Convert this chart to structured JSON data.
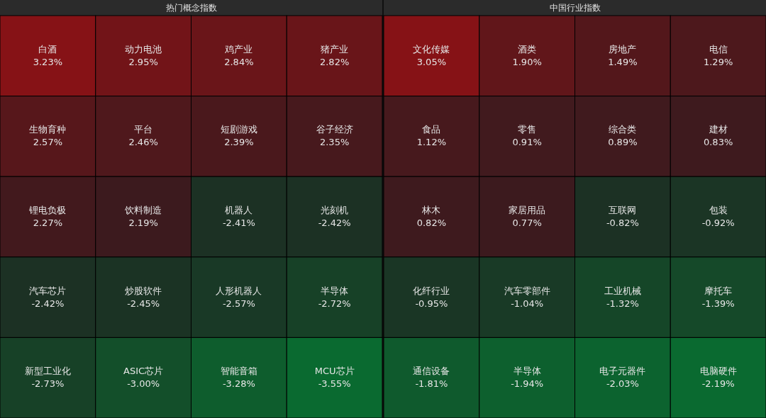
{
  "chart_data": [
    {
      "type": "other",
      "title": "热门概念指数",
      "categories": [
        "白酒",
        "动力电池",
        "鸡产业",
        "猪产业",
        "生物育种",
        "平台",
        "短剧游戏",
        "谷子经济",
        "锂电负极",
        "饮料制造",
        "机器人",
        "光刻机",
        "汽车芯片",
        "炒股软件",
        "人形机器人",
        "半导体",
        "新型工业化",
        "ASIC芯片",
        "智能音箱",
        "MCU芯片"
      ],
      "values": [
        3.23,
        2.95,
        2.84,
        2.82,
        2.57,
        2.46,
        2.39,
        2.35,
        2.27,
        2.19,
        -2.41,
        -2.42,
        -2.42,
        -2.45,
        -2.57,
        -2.72,
        -2.73,
        -3.0,
        -3.28,
        -3.55
      ],
      "value_labels": [
        "3.23%",
        "2.95%",
        "2.84%",
        "2.82%",
        "2.57%",
        "2.46%",
        "2.39%",
        "2.35%",
        "2.27%",
        "2.19%",
        "-2.41%",
        "-2.42%",
        "-2.42%",
        "-2.45%",
        "-2.57%",
        "-2.72%",
        "-2.73%",
        "-3.00%",
        "-3.28%",
        "-3.55%"
      ]
    },
    {
      "type": "other",
      "title": "中国行业指数",
      "categories": [
        "文化传媒",
        "酒类",
        "房地产",
        "电信",
        "食品",
        "零售",
        "综合类",
        "建材",
        "林木",
        "家居用品",
        "互联网",
        "包装",
        "化纤行业",
        "汽车零部件",
        "工业机械",
        "摩托车",
        "通信设备",
        "半导体",
        "电子元器件",
        "电脑硬件"
      ],
      "values": [
        3.05,
        1.9,
        1.49,
        1.29,
        1.12,
        0.91,
        0.89,
        0.83,
        0.82,
        0.77,
        -0.82,
        -0.92,
        -0.95,
        -1.04,
        -1.32,
        -1.39,
        -1.81,
        -1.94,
        -2.03,
        -2.19
      ],
      "value_labels": [
        "3.05%",
        "1.90%",
        "1.49%",
        "1.29%",
        "1.12%",
        "0.91%",
        "0.89%",
        "0.83%",
        "0.82%",
        "0.77%",
        "-0.82%",
        "-0.92%",
        "-0.95%",
        "-1.04%",
        "-1.32%",
        "-1.39%",
        "-1.81%",
        "-1.94%",
        "-2.03%",
        "-2.19%"
      ]
    }
  ]
}
